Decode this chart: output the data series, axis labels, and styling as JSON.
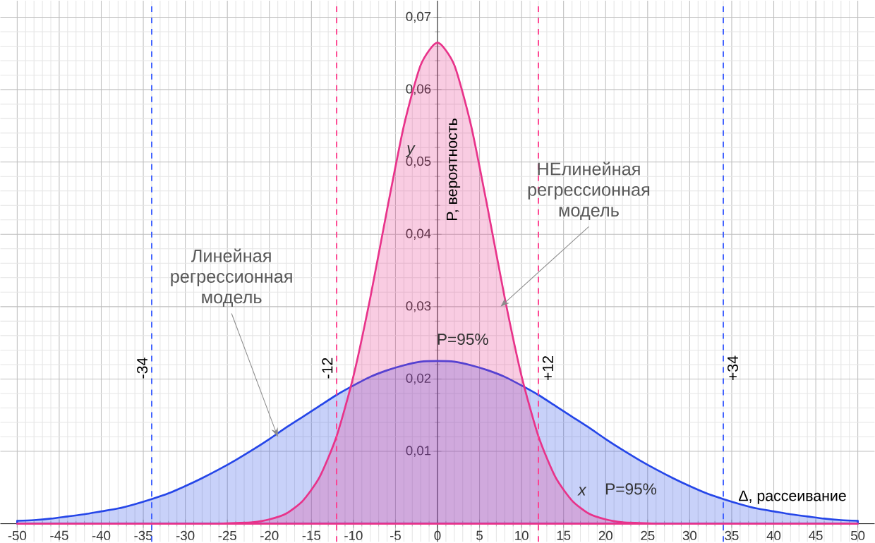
{
  "chart_data": {
    "type": "area",
    "xlabel": "Δ, рассеивание",
    "ylabel": "P, вероятность",
    "x": [
      -50,
      -48,
      -46,
      -44,
      -42,
      -40,
      -38,
      -36,
      -34,
      -32,
      -30,
      -28,
      -26,
      -24,
      -22,
      -20,
      -18,
      -16,
      -14,
      -12,
      -10,
      -8,
      -6,
      -4,
      -2,
      0,
      2,
      4,
      6,
      8,
      10,
      12,
      14,
      16,
      18,
      20,
      22,
      24,
      26,
      28,
      30,
      32,
      34,
      36,
      38,
      40,
      42,
      44,
      46,
      48,
      50
    ],
    "series": [
      {
        "color": "#2546e8",
        "values": [
          0.0004,
          0.0005,
          0.0007,
          0.001,
          0.0013,
          0.0017,
          0.0021,
          0.0027,
          0.0034,
          0.0042,
          0.0052,
          0.0063,
          0.0075,
          0.0088,
          0.0102,
          0.0117,
          0.0133,
          0.0148,
          0.0163,
          0.0178,
          0.0191,
          0.0203,
          0.0212,
          0.0219,
          0.0224,
          0.0225,
          0.0224,
          0.0219,
          0.0212,
          0.0203,
          0.0191,
          0.0178,
          0.0163,
          0.0148,
          0.0133,
          0.0117,
          0.0102,
          0.0088,
          0.0075,
          0.0063,
          0.0052,
          0.0042,
          0.0034,
          0.0027,
          0.0021,
          0.0017,
          0.0013,
          0.001,
          0.0007,
          0.0005,
          0.0004
        ]
      },
      {
        "color": "#e8338a",
        "values": [
          0,
          0,
          0,
          0,
          0,
          0,
          0,
          0,
          0,
          0,
          0,
          0,
          0,
          0.0001,
          0.0002,
          0.0006,
          0.0014,
          0.0032,
          0.0065,
          0.0121,
          0.0204,
          0.0312,
          0.0434,
          0.055,
          0.0634,
          0.0665,
          0.0634,
          0.055,
          0.0434,
          0.0312,
          0.0204,
          0.0121,
          0.0065,
          0.0032,
          0.0014,
          0.0006,
          0.0002,
          0.0001,
          0,
          0,
          0,
          0,
          0,
          0,
          0,
          0,
          0,
          0,
          0,
          0,
          0
        ]
      }
    ],
    "xlim": [
      -52,
      52
    ],
    "ylim": [
      -0.0025,
      0.0723
    ],
    "xticks": [
      -50,
      -45,
      -40,
      -35,
      -30,
      -25,
      -20,
      -15,
      -10,
      -5,
      0,
      5,
      10,
      15,
      20,
      25,
      30,
      35,
      40,
      45,
      50
    ],
    "yticks": [
      {
        "value": 0.01,
        "label": "0,01"
      },
      {
        "value": 0.02,
        "label": "0,02"
      },
      {
        "value": 0.03,
        "label": "0,03"
      },
      {
        "value": 0.04,
        "label": "0,04"
      },
      {
        "value": 0.05,
        "label": "0,05"
      },
      {
        "value": 0.06,
        "label": "0,06"
      },
      {
        "value": 0.07,
        "label": "0,07"
      }
    ],
    "grid": true,
    "ref_lines": [
      {
        "axis": "x",
        "value": -34,
        "label": "-34",
        "color": "#3a5cff",
        "line_style": "dashed"
      },
      {
        "axis": "x",
        "value": -12,
        "label": "-12",
        "color": "#ff3c8c",
        "line_style": "dashed"
      },
      {
        "axis": "x",
        "value": 12,
        "label": "+12",
        "color": "#ff3c8c",
        "line_style": "dashed"
      },
      {
        "axis": "x",
        "value": 34,
        "label": "+34",
        "color": "#3a5cff",
        "line_style": "dashed"
      }
    ],
    "annotations": [
      {
        "text": "Линейная регрессионная модель",
        "x": -19,
        "y": 0.012
      },
      {
        "text": "НЕлинейная регрессионная модель",
        "x": 7.5,
        "y": 0.03
      },
      "P=95%",
      "P=95%",
      "y",
      "x"
    ]
  }
}
